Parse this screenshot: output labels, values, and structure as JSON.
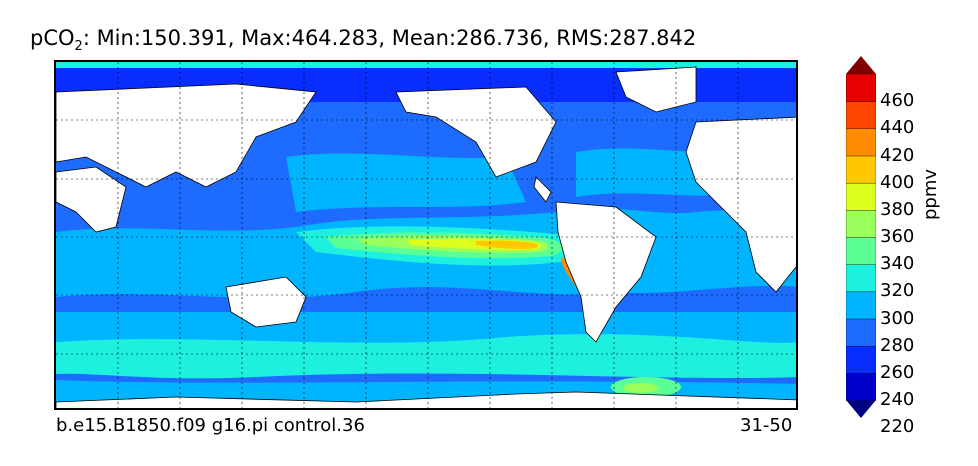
{
  "title": {
    "variable": "pCO",
    "subscript": "2",
    "stats": ": Min:150.391, Max:464.283, Mean:286.736, RMS:287.842"
  },
  "footer": {
    "case_name": "b.e15.B1850.f09 g16.pi control.36",
    "years": "31-50"
  },
  "colorbar": {
    "unit_label": "ppmv",
    "ticks": [
      "460",
      "440",
      "420",
      "400",
      "380",
      "360",
      "340",
      "320",
      "300",
      "280",
      "260",
      "240",
      "220"
    ],
    "colors": [
      "#000080",
      "#0000cd",
      "#0a2dff",
      "#1e6bff",
      "#00b4ff",
      "#1ef0e0",
      "#5aff96",
      "#9aff5a",
      "#dcff1e",
      "#ffc800",
      "#ff8c00",
      "#ff4600",
      "#e60000",
      "#800000"
    ],
    "extend": "both"
  },
  "map": {
    "projection": "cylindrical equidistant",
    "grid_style": "dotted",
    "land_color": "#ffffff",
    "coastline_color": "#000000"
  }
}
